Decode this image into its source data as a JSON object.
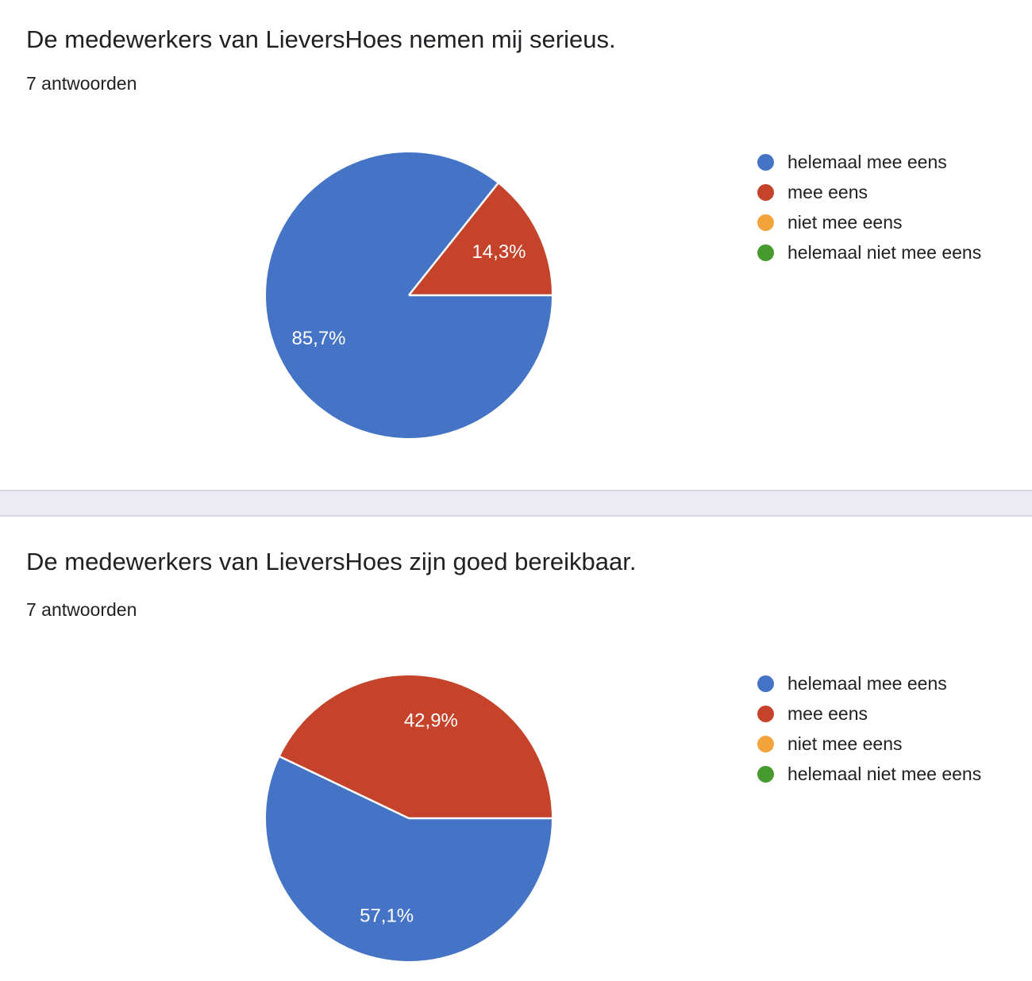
{
  "page": {
    "background": "#ffffff",
    "divider_color": "#ECEBF4",
    "divider_edge_color": "#D8D7DD",
    "text_color": "#202124"
  },
  "palette": {
    "blue": "#4574C6",
    "red": "#C5432B",
    "orange": "#F2A33C",
    "green": "#479A2E",
    "slice_label_text": "#ffffff"
  },
  "chart_data": [
    {
      "type": "pie",
      "title": "De medewerkers van LieversHoes nemen mij serieus.",
      "subtitle": "7 antwoorden",
      "categories": [
        "helemaal mee eens",
        "mee eens",
        "niet mee eens",
        "helemaal niet mee eens"
      ],
      "values": [
        85.7,
        14.3,
        0,
        0
      ],
      "slice_labels": [
        "85,7%",
        "14,3%",
        "",
        ""
      ],
      "colors": [
        "#4574C6",
        "#C5432B",
        "#F2A33C",
        "#479A2E"
      ],
      "legend_position": "right",
      "start_angle": "east",
      "direction": "clockwise"
    },
    {
      "type": "pie",
      "title": "De medewerkers van LieversHoes zijn goed bereikbaar.",
      "subtitle": "7 antwoorden",
      "categories": [
        "helemaal mee eens",
        "mee eens",
        "niet mee eens",
        "helemaal niet mee eens"
      ],
      "values": [
        57.1,
        42.9,
        0,
        0
      ],
      "slice_labels": [
        "57,1%",
        "42,9%",
        "",
        ""
      ],
      "colors": [
        "#4574C6",
        "#C5432B",
        "#F2A33C",
        "#479A2E"
      ],
      "legend_position": "right",
      "start_angle": "east",
      "direction": "clockwise"
    }
  ]
}
